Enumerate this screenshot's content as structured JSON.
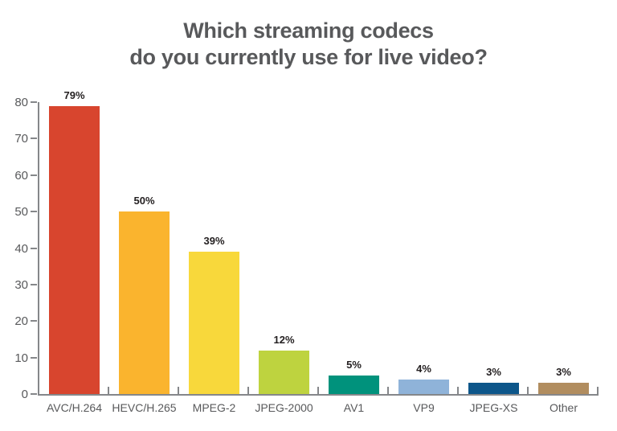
{
  "page": {
    "background": "#ffffff"
  },
  "title": {
    "line1": "Which streaming codecs",
    "line2": "do you currently use for live video?",
    "color": "#58595b"
  },
  "chart_data": {
    "type": "bar",
    "title": "Which streaming codecs do you currently use for live video?",
    "categories": [
      "AVC/H.264",
      "HEVC/H.265",
      "MPEG-2",
      "JPEG-2000",
      "AV1",
      "VP9",
      "JPEG-XS",
      "Other"
    ],
    "values": [
      79,
      50,
      39,
      12,
      5,
      4,
      3,
      3
    ],
    "value_labels": [
      "79%",
      "50%",
      "39%",
      "12%",
      "5%",
      "4%",
      "3%",
      "3%"
    ],
    "bar_colors": [
      "#d8452e",
      "#fab42e",
      "#f8d83b",
      "#bed33f",
      "#00927c",
      "#8fb3d9",
      "#0d568a",
      "#b18d5f"
    ],
    "xlabel": "",
    "ylabel": "",
    "ylim": [
      0,
      80
    ],
    "yticks": [
      0,
      10,
      20,
      30,
      40,
      50,
      60,
      70,
      80
    ],
    "grid": false,
    "legend": "none",
    "axis_color": "#85878a",
    "tick_label_color": "#58595b",
    "value_label_color": "#231f20"
  }
}
